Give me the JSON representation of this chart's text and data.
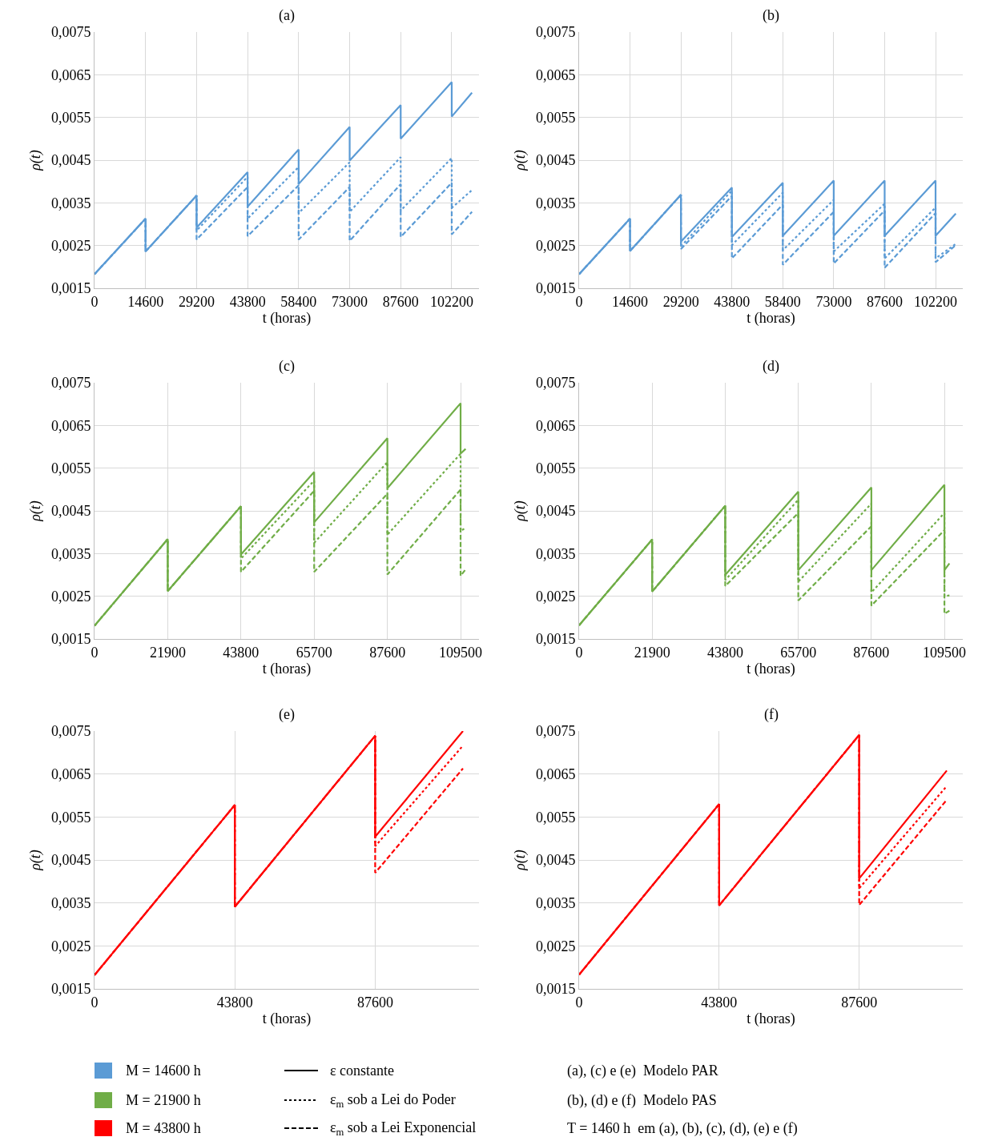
{
  "chart_data": [
    {
      "type": "line",
      "title": "(a)",
      "xlabel": "t (horas)",
      "ylabel": "ρ(t)",
      "grid": true,
      "xlim": [
        0,
        110000
      ],
      "xticks": [
        0,
        14600,
        29200,
        43800,
        58400,
        73000,
        87600,
        102200
      ],
      "ylim": [
        0.0015,
        0.0075
      ],
      "yticks": [
        {
          "value": 0.0015,
          "label": "0,0015"
        },
        {
          "value": 0.0025,
          "label": "0,0025"
        },
        {
          "value": 0.0035,
          "label": "0,0035"
        },
        {
          "value": 0.0045,
          "label": "0,0045"
        },
        {
          "value": 0.0055,
          "label": "0,0055"
        },
        {
          "value": 0.0065,
          "label": "0,0065"
        },
        {
          "value": 0.0075,
          "label": "0,0075"
        }
      ],
      "x": [
        0,
        14600,
        14600,
        29200,
        29200,
        43800,
        43800,
        58400,
        58400,
        73000,
        73000,
        87600,
        87600,
        102200,
        102200,
        108000
      ],
      "series": [
        {
          "color": "#5b9bd5",
          "line_style": "solid",
          "values": [
            0.00183,
            0.00313,
            0.00236,
            0.00367,
            0.00292,
            0.00422,
            0.00341,
            0.00475,
            0.00394,
            0.00528,
            0.00449,
            0.00579,
            0.005,
            0.00633,
            0.00552,
            0.00608
          ]
        },
        {
          "color": "#5b9bd5",
          "line_style": "dotted",
          "values": [
            0.00183,
            0.00313,
            0.00236,
            0.00367,
            0.00285,
            0.00411,
            0.00313,
            0.00434,
            0.00326,
            0.00445,
            0.00329,
            0.00457,
            0.00332,
            0.00455,
            0.00338,
            0.0038
          ]
        },
        {
          "color": "#5b9bd5",
          "line_style": "dashed",
          "values": [
            0.00183,
            0.00313,
            0.00236,
            0.00367,
            0.00264,
            0.00387,
            0.00272,
            0.00391,
            0.00264,
            0.00387,
            0.00261,
            0.00394,
            0.0027,
            0.00397,
            0.00276,
            0.00329
          ]
        }
      ]
    },
    {
      "type": "line",
      "title": "(b)",
      "xlabel": "t (horas)",
      "ylabel": "ρ(t)",
      "grid": true,
      "xlim": [
        0,
        110000
      ],
      "xticks": [
        0,
        14600,
        29200,
        43800,
        58400,
        73000,
        87600,
        102200
      ],
      "ylim": [
        0.0015,
        0.0075
      ],
      "yticks": [
        {
          "value": 0.0015,
          "label": "0,0015"
        },
        {
          "value": 0.0025,
          "label": "0,0025"
        },
        {
          "value": 0.0035,
          "label": "0,0035"
        },
        {
          "value": 0.0045,
          "label": "0,0045"
        },
        {
          "value": 0.0055,
          "label": "0,0055"
        },
        {
          "value": 0.0065,
          "label": "0,0065"
        },
        {
          "value": 0.0075,
          "label": "0,0075"
        }
      ],
      "x": [
        0,
        14600,
        14600,
        29200,
        29200,
        43800,
        43800,
        58400,
        58400,
        73000,
        73000,
        87600,
        87600,
        102200,
        102200,
        108000
      ],
      "series": [
        {
          "color": "#5b9bd5",
          "line_style": "solid",
          "values": [
            0.00183,
            0.00313,
            0.00237,
            0.00369,
            0.00259,
            0.00386,
            0.0027,
            0.00397,
            0.00273,
            0.00402,
            0.00273,
            0.00402,
            0.00273,
            0.00402,
            0.00273,
            0.00325
          ]
        },
        {
          "color": "#5b9bd5",
          "line_style": "dotted",
          "values": [
            0.00183,
            0.00313,
            0.00237,
            0.00369,
            0.00248,
            0.00379,
            0.00251,
            0.00374,
            0.00239,
            0.00357,
            0.00236,
            0.00348,
            0.0022,
            0.00339,
            0.0022,
            0.00254
          ]
        },
        {
          "color": "#5b9bd5",
          "line_style": "dashed",
          "values": [
            0.00183,
            0.00313,
            0.00237,
            0.00369,
            0.00242,
            0.00366,
            0.0022,
            0.00346,
            0.00205,
            0.00329,
            0.00208,
            0.00332,
            0.00198,
            0.00326,
            0.00211,
            0.00251
          ]
        }
      ]
    },
    {
      "type": "line",
      "title": "(c)",
      "xlabel": "t (horas)",
      "ylabel": "ρ(t)",
      "grid": true,
      "xlim": [
        0,
        115000
      ],
      "xticks": [
        0,
        21900,
        43800,
        65700,
        87600,
        109500
      ],
      "ylim": [
        0.0015,
        0.0075
      ],
      "yticks": [
        {
          "value": 0.0015,
          "label": "0,0015"
        },
        {
          "value": 0.0025,
          "label": "0,0025"
        },
        {
          "value": 0.0035,
          "label": "0,0035"
        },
        {
          "value": 0.0045,
          "label": "0,0045"
        },
        {
          "value": 0.0055,
          "label": "0,0055"
        },
        {
          "value": 0.0065,
          "label": "0,0065"
        },
        {
          "value": 0.0075,
          "label": "0,0075"
        }
      ],
      "x": [
        0,
        21900,
        21900,
        43800,
        43800,
        65700,
        65700,
        87600,
        87600,
        109500,
        109500,
        111000
      ],
      "series": [
        {
          "color": "#70ad47",
          "line_style": "solid",
          "values": [
            0.00181,
            0.00384,
            0.00262,
            0.00461,
            0.00348,
            0.00541,
            0.00423,
            0.0062,
            0.00503,
            0.00702,
            0.00584,
            0.00595
          ]
        },
        {
          "color": "#70ad47",
          "line_style": "dotted",
          "values": [
            0.00181,
            0.00384,
            0.00262,
            0.00461,
            0.00338,
            0.00521,
            0.00375,
            0.00564,
            0.00394,
            0.00584,
            0.00403,
            0.0041
          ]
        },
        {
          "color": "#70ad47",
          "line_style": "dashed",
          "values": [
            0.00181,
            0.00384,
            0.00262,
            0.00461,
            0.00307,
            0.00497,
            0.00307,
            0.0049,
            0.00301,
            0.005,
            0.00298,
            0.00313
          ]
        }
      ]
    },
    {
      "type": "line",
      "title": "(d)",
      "xlabel": "t (horas)",
      "ylabel": "ρ(t)",
      "grid": true,
      "xlim": [
        0,
        115000
      ],
      "xticks": [
        0,
        21900,
        43800,
        65700,
        87600,
        109500
      ],
      "ylim": [
        0.0015,
        0.0075
      ],
      "yticks": [
        {
          "value": 0.0015,
          "label": "0,0015"
        },
        {
          "value": 0.0025,
          "label": "0,0025"
        },
        {
          "value": 0.0035,
          "label": "0,0035"
        },
        {
          "value": 0.0045,
          "label": "0,0045"
        },
        {
          "value": 0.0055,
          "label": "0,0055"
        },
        {
          "value": 0.0065,
          "label": "0,0065"
        },
        {
          "value": 0.0075,
          "label": "0,0075"
        }
      ],
      "x": [
        0,
        21900,
        21900,
        43800,
        43800,
        65700,
        65700,
        87600,
        87600,
        109500,
        109500,
        111000
      ],
      "series": [
        {
          "color": "#70ad47",
          "line_style": "solid",
          "values": [
            0.00182,
            0.00383,
            0.00261,
            0.00462,
            0.003,
            0.00495,
            0.00311,
            0.00505,
            0.00311,
            0.00511,
            0.00311,
            0.00327
          ]
        },
        {
          "color": "#70ad47",
          "line_style": "dotted",
          "values": [
            0.00182,
            0.00383,
            0.00261,
            0.00462,
            0.00288,
            0.00476,
            0.00284,
            0.00467,
            0.00259,
            0.00445,
            0.0025,
            0.00252
          ]
        },
        {
          "color": "#70ad47",
          "line_style": "dashed",
          "values": [
            0.00182,
            0.00383,
            0.00261,
            0.00462,
            0.00274,
            0.00445,
            0.0024,
            0.00414,
            0.00228,
            0.00405,
            0.00209,
            0.00216
          ]
        }
      ]
    },
    {
      "type": "line",
      "title": "(e)",
      "xlabel": "t (horas)",
      "ylabel": "ρ(t)",
      "grid": true,
      "xlim": [
        0,
        120000
      ],
      "xticks": [
        0,
        43800,
        87600
      ],
      "ylim": [
        0.0015,
        0.0075
      ],
      "yticks": [
        {
          "value": 0.0015,
          "label": "0,0015"
        },
        {
          "value": 0.0025,
          "label": "0,0025"
        },
        {
          "value": 0.0035,
          "label": "0,0035"
        },
        {
          "value": 0.0045,
          "label": "0,0045"
        },
        {
          "value": 0.0055,
          "label": "0,0055"
        },
        {
          "value": 0.0065,
          "label": "0,0065"
        },
        {
          "value": 0.0075,
          "label": "0,0075"
        }
      ],
      "x": [
        0,
        43800,
        43800,
        87600,
        87600,
        115000
      ],
      "series": [
        {
          "color": "#ff0000",
          "line_style": "solid",
          "values": [
            0.00182,
            0.00578,
            0.00341,
            0.00739,
            0.00504,
            0.0075
          ]
        },
        {
          "color": "#ff0000",
          "line_style": "dotted",
          "values": [
            0.00182,
            0.00578,
            0.00341,
            0.00739,
            0.00482,
            0.00716
          ]
        },
        {
          "color": "#ff0000",
          "line_style": "dashed",
          "values": [
            0.00182,
            0.00578,
            0.00341,
            0.00739,
            0.0042,
            0.00663
          ]
        }
      ]
    },
    {
      "type": "line",
      "title": "(f)",
      "xlabel": "t (horas)",
      "ylabel": "ρ(t)",
      "grid": true,
      "xlim": [
        0,
        120000
      ],
      "xticks": [
        0,
        43800,
        87600
      ],
      "ylim": [
        0.0015,
        0.0075
      ],
      "yticks": [
        {
          "value": 0.0015,
          "label": "0,0015"
        },
        {
          "value": 0.0025,
          "label": "0,0025"
        },
        {
          "value": 0.0035,
          "label": "0,0035"
        },
        {
          "value": 0.0045,
          "label": "0,0045"
        },
        {
          "value": 0.0055,
          "label": "0,0055"
        },
        {
          "value": 0.0065,
          "label": "0,0065"
        },
        {
          "value": 0.0075,
          "label": "0,0075"
        }
      ],
      "x": [
        0,
        43800,
        43800,
        87600,
        87600,
        115000
      ],
      "series": [
        {
          "color": "#ff0000",
          "line_style": "solid",
          "values": [
            0.00183,
            0.0058,
            0.00344,
            0.00741,
            0.00407,
            0.00658
          ]
        },
        {
          "color": "#ff0000",
          "line_style": "dotted",
          "values": [
            0.00183,
            0.0058,
            0.00344,
            0.00741,
            0.00384,
            0.00622
          ]
        },
        {
          "color": "#ff0000",
          "line_style": "dashed",
          "values": [
            0.00183,
            0.0058,
            0.00344,
            0.00741,
            0.00345,
            0.0059
          ]
        }
      ]
    },
    {
      "type": "other",
      "annotations": [
        "M = 14600 h",
        "ε constante",
        "(a), (c) e (e)  Modelo PAR",
        "M = 21900 h",
        "ε$_{m}$ sob a Lei do Poder",
        "(b), (d) e (f)  Modelo PAS",
        "M = 43800 h",
        "ε$_{m}$ sob a Lei Exponencial",
        "T = 1460 h  em (a), (b), (c), (d), (e) e (f)"
      ]
    }
  ]
}
